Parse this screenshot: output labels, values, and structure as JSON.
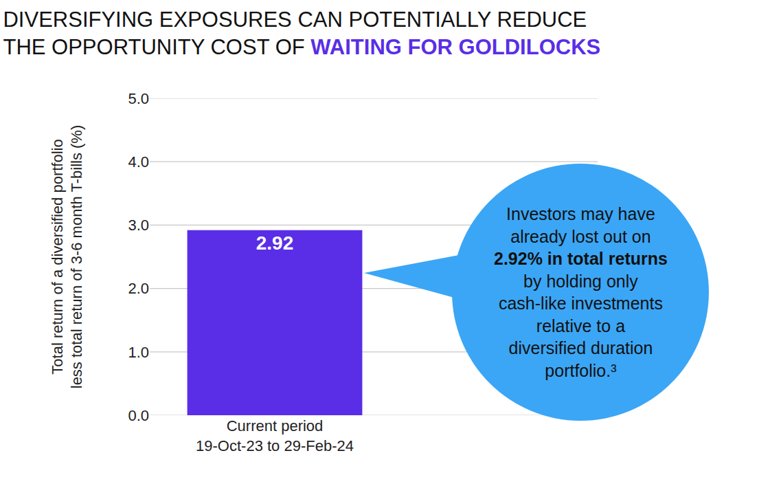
{
  "chart_data": {
    "type": "bar",
    "title": "DIVERSIFYING EXPOSURES CAN POTENTIALLY REDUCE\nTHE OPPORTUNITY COST OF WAITING FOR GOLDILOCKS",
    "y_label": "Total return of a diversified portfolio\nless total return of 3-6 month T-bills (%)",
    "categories": [
      "Current period\n19-Oct-23 to 29-Feb-24"
    ],
    "values": [
      2.92
    ],
    "color": "#5a2ee6",
    "ylim": [
      0,
      5
    ],
    "yticks": [
      {
        "value": 0,
        "label": "0.0"
      },
      {
        "value": 1,
        "label": "1.0"
      },
      {
        "value": 2,
        "label": "2.0"
      },
      {
        "value": 3,
        "label": "3.0"
      },
      {
        "value": 4,
        "label": "4.0"
      },
      {
        "value": 5,
        "label": "5.0"
      }
    ],
    "grid": true,
    "data_labels": true,
    "annotations": [
      "Investors may have already lost out on 2.92% in total returns by holding only cash-like investments relative to a diversified duration portfolio.³"
    ]
  }
}
